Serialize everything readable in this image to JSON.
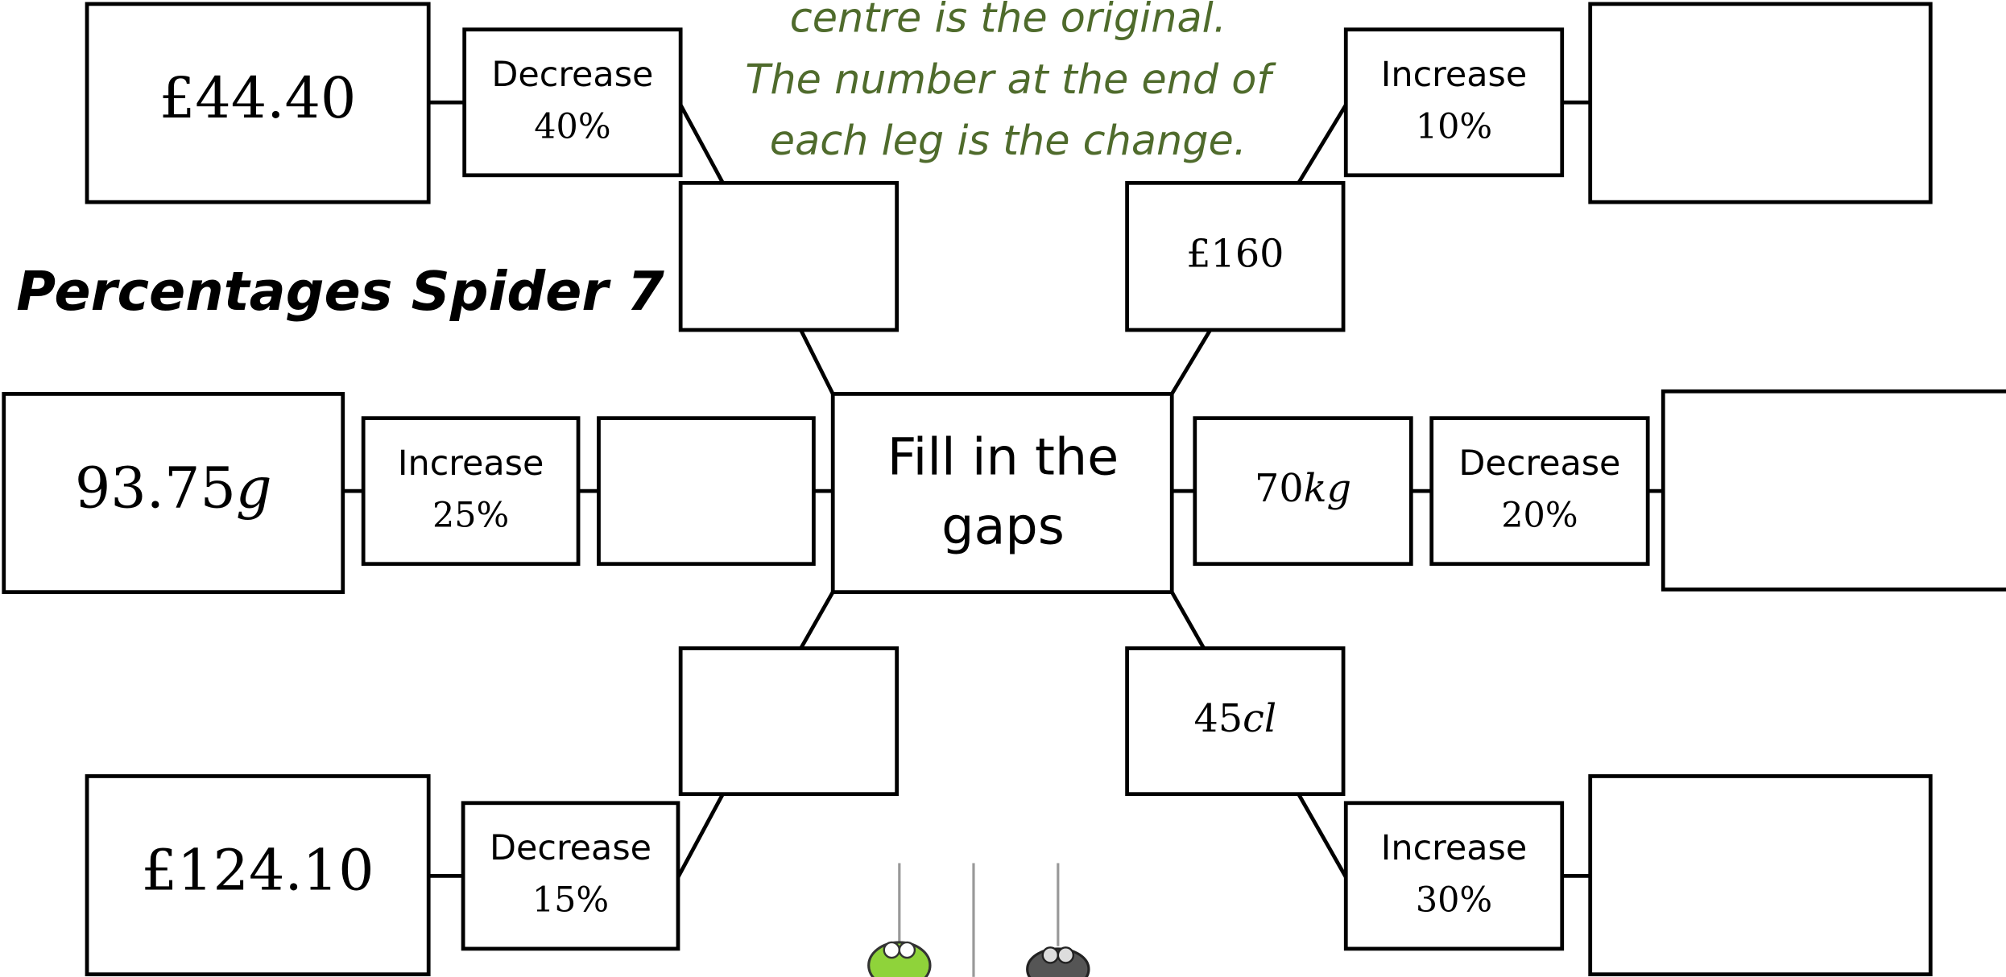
{
  "title": "Percentages Spider 7",
  "instructions": [
    "centre is the original.",
    "The number at the end of",
    "each leg is the change."
  ],
  "centre": [
    "Fill in the",
    "gaps"
  ],
  "legs": [
    {
      "end": {
        "value": "£44.40"
      },
      "operation": [
        "Decrease",
        "40%"
      ]
    },
    {
      "inner": {
        "value": "£160"
      },
      "operation": [
        "Increase",
        "10%"
      ]
    },
    {
      "end": {
        "value": "93.75",
        "unit": "g"
      },
      "operation": [
        "Increase",
        "25%"
      ]
    },
    {
      "inner": {
        "value": "70",
        "unit": "kg"
      },
      "operation": [
        "Decrease",
        "20%"
      ]
    },
    {
      "end": {
        "value": "£124.10"
      },
      "operation": [
        "Decrease",
        "15%"
      ]
    },
    {
      "inner": {
        "value": "45",
        "unit": "cl"
      },
      "operation": [
        "Increase",
        "30%"
      ]
    }
  ]
}
